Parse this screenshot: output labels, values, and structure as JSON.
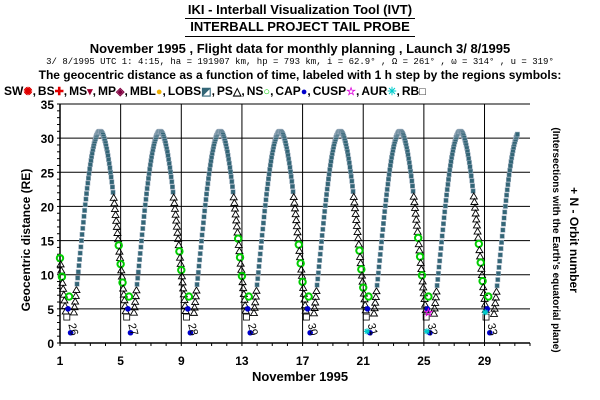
{
  "header": {
    "title": "IKI - Interball Visualization Tool (IVT)",
    "subtitle": "INTERBALL PROJECT TAIL PROBE",
    "flight_line": "November 1995 ,  Flight data for monthly planning ,   Launch  3/ 8/1995",
    "params_line": "3/ 8/1995 UTC  1: 4:15, ha = 191907 km, hp =    793 km, i = 62.9°  , Ω = 261°  , ω = 314°  , u = 319°",
    "description": "The geocentric distance as a function of time, labeled with 1 h step by the regions symbols:"
  },
  "legend": [
    {
      "label": "SW",
      "symbol": "✺",
      "color": "#e00000",
      "sep": ","
    },
    {
      "label": "BS",
      "symbol": "✚",
      "color": "#e00000",
      "sep": ","
    },
    {
      "label": "MS",
      "symbol": "▾",
      "color": "#a00030",
      "sep": ","
    },
    {
      "label": "MP",
      "symbol": "◈",
      "color": "#800040",
      "sep": ","
    },
    {
      "label": "MBL",
      "symbol": "●",
      "color": "#f0b000",
      "sep": ","
    },
    {
      "label": "LOBS",
      "symbol": "◩",
      "color": "#336677",
      "sep": ","
    },
    {
      "label": "PS",
      "symbol": "△",
      "color": "#000000",
      "sep": ","
    },
    {
      "label": "NS",
      "symbol": "○",
      "color": "#00cc00",
      "sep": ","
    },
    {
      "label": "CAP",
      "symbol": "●",
      "color": "#0000cc",
      "sep": ","
    },
    {
      "label": "CUSP",
      "symbol": "☆",
      "color": "#dd00dd",
      "sep": ","
    },
    {
      "label": "AUR",
      "symbol": "✳",
      "color": "#00cccc",
      "sep": ","
    },
    {
      "label": "RB",
      "symbol": "□",
      "color": "#000000",
      "sep": ""
    }
  ],
  "right_label": {
    "main": "+ N - Orbit number",
    "sub": "(Intersections with the Earth's equatorial plane)"
  },
  "colors": {
    "lobes": "#336677",
    "plasma_sheet": "#000000",
    "cap": "#0000cc",
    "ns": "#00cc00",
    "aur": "#00cccc",
    "cusp": "#dd00dd"
  },
  "chart_data": {
    "type": "scatter",
    "ylabel": "Geocentric distance (RE)",
    "xlabel": "November 1995",
    "xlim": [
      1,
      32
    ],
    "ylim": [
      0,
      35
    ],
    "x_ticks": [
      "1",
      "5",
      "9",
      "13",
      "17",
      "21",
      "25",
      "29"
    ],
    "y_ticks": [
      "0",
      "5",
      "10",
      "15",
      "20",
      "25",
      "30",
      "35"
    ],
    "orbit_period_days": 3.96,
    "perigee_days": [
      1.65,
      5.6,
      9.55,
      13.5,
      17.45,
      21.4,
      25.35,
      29.3
    ],
    "apogee_distance_re": 31,
    "orbit_numbers": [
      "26",
      "27",
      "28",
      "29",
      "30",
      "31",
      "32",
      "33"
    ],
    "grid": true
  }
}
